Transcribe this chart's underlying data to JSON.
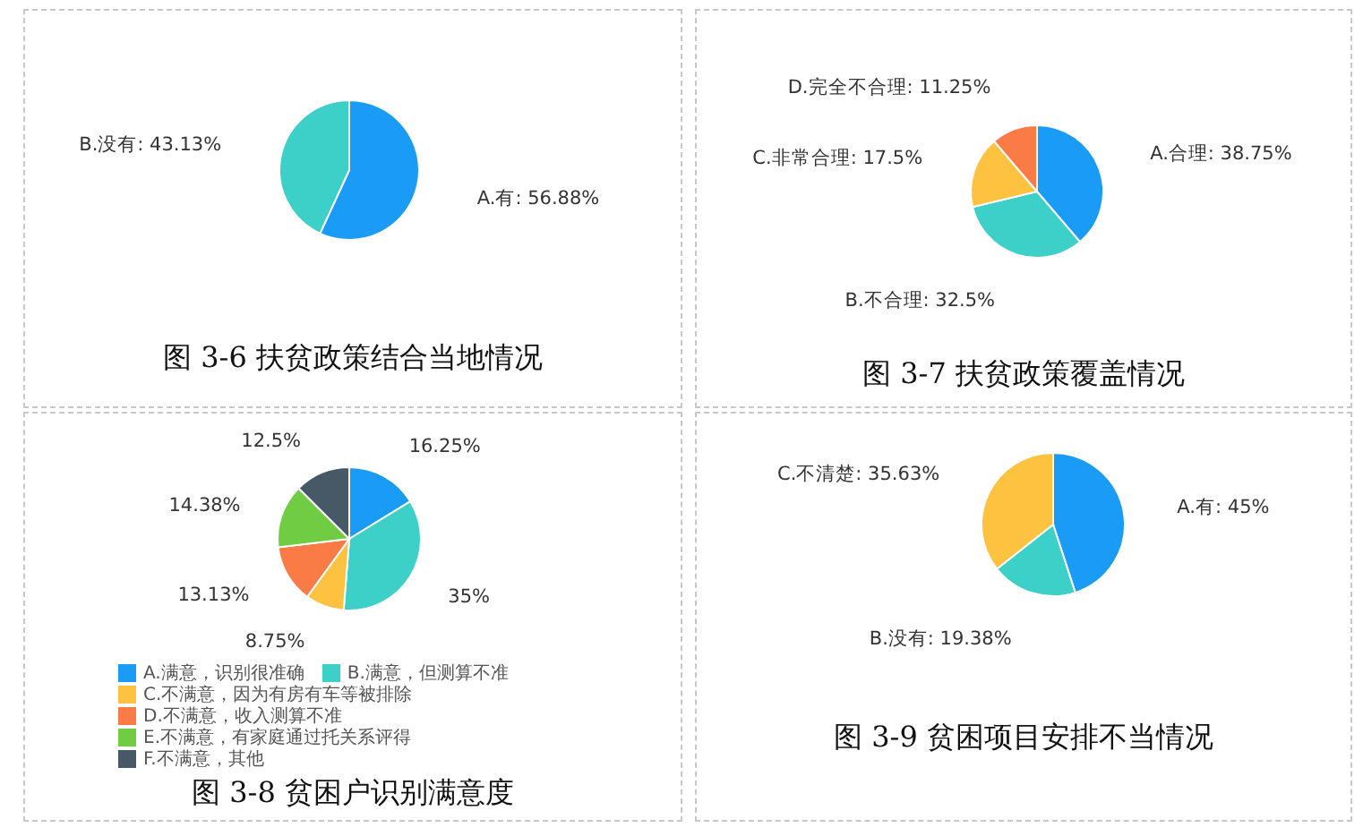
{
  "chart_data": [
    {
      "type": "pie",
      "title": "图 3-6 扶贫政策结合当地情况",
      "categories": [
        "A.有",
        "B.没有"
      ],
      "values": [
        56.88,
        43.13
      ],
      "colors": [
        "#1a9bf6",
        "#3dd0c8"
      ],
      "value_labels": [
        "56.88%",
        "43.13%"
      ]
    },
    {
      "type": "pie",
      "title": "图 3-7 扶贫政策覆盖情况",
      "categories": [
        "A.合理",
        "B.不合理",
        "C.非常合理",
        "D.完全不合理"
      ],
      "values": [
        38.75,
        32.5,
        17.5,
        11.25
      ],
      "colors": [
        "#1a9bf6",
        "#3dd0c8",
        "#fcc240",
        "#fa7b46"
      ],
      "value_labels": [
        "38.75%",
        "32.5%",
        "17.5%",
        "11.25%"
      ]
    },
    {
      "type": "pie",
      "title": "图 3-8 贫困户识别满意度",
      "categories": [
        "A.满意，识别很准确",
        "B.满意，但测算不准",
        "C.不满意，因为有房有车等被排除",
        "D.不满意，收入测算不准",
        "E.不满意，有家庭通过托关系评得",
        "F.不满意，其他"
      ],
      "values": [
        16.25,
        35,
        8.75,
        13.13,
        14.38,
        12.5
      ],
      "colors": [
        "#1a9bf6",
        "#3dd0c8",
        "#fcc240",
        "#fa7b46",
        "#70cc42",
        "#475866"
      ],
      "value_labels": [
        "16.25%",
        "35%",
        "8.75%",
        "13.13%",
        "14.38%",
        "12.5%"
      ],
      "legend": "bottom"
    },
    {
      "type": "pie",
      "title": "图 3-9 贫困项目安排不当情况",
      "categories": [
        "A.有",
        "B.没有",
        "C.不清楚"
      ],
      "values": [
        45,
        19.38,
        35.63
      ],
      "colors": [
        "#1a9bf6",
        "#3dd0c8",
        "#fcc240"
      ],
      "value_labels": [
        "45%",
        "19.38%",
        "35.63%"
      ]
    }
  ]
}
